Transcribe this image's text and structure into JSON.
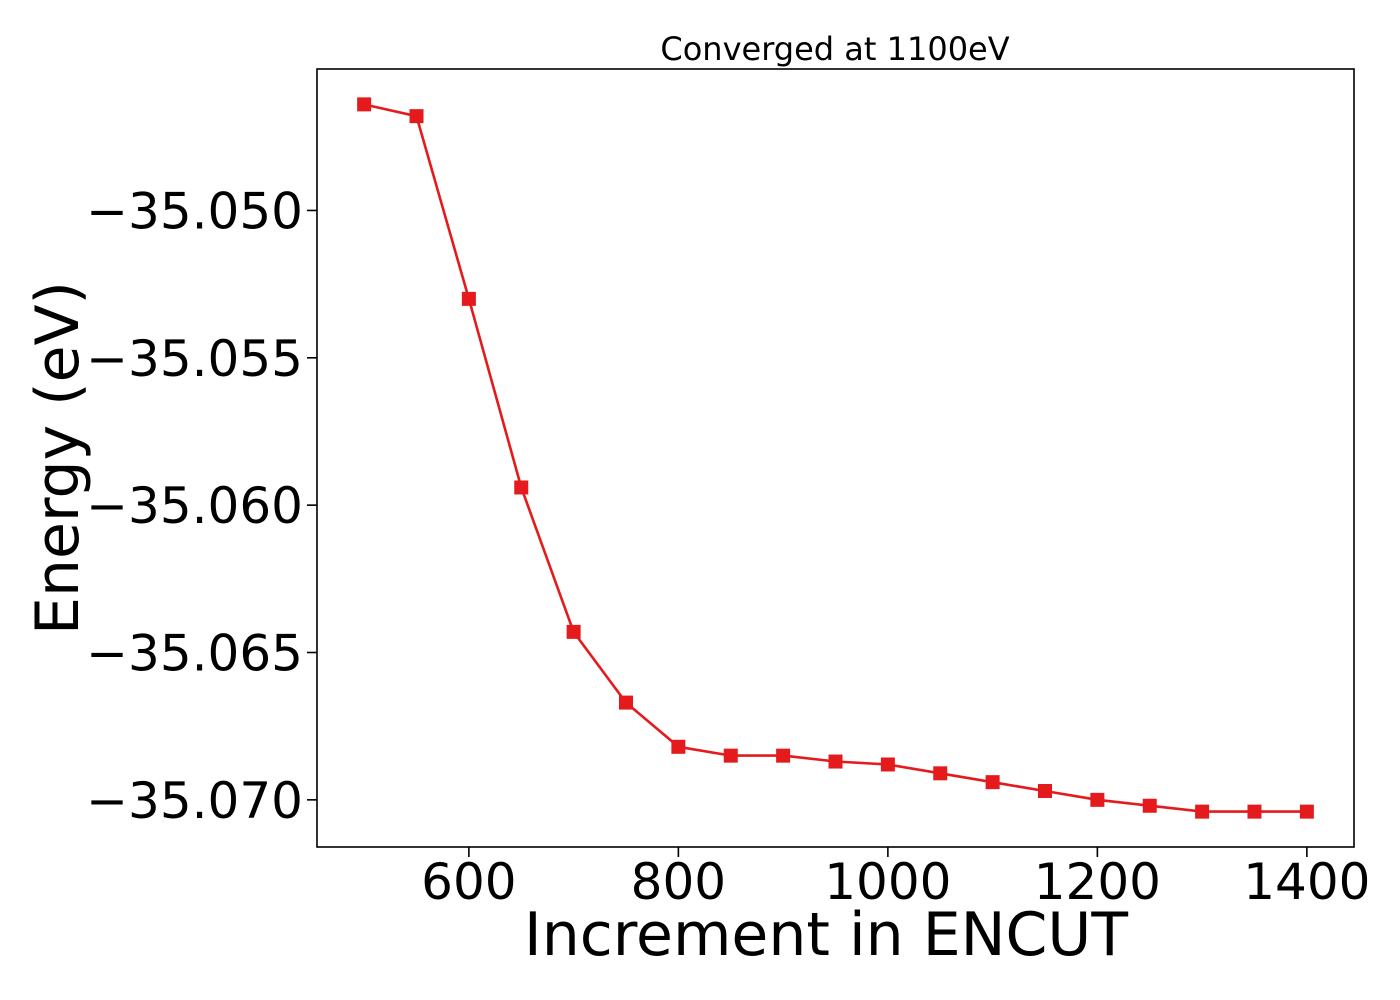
{
  "chart_data": {
    "type": "line",
    "title": "Converged at 1100eV",
    "xlabel": "Increment in ENCUT",
    "ylabel": "Energy (eV)",
    "x": [
      500,
      550,
      600,
      650,
      700,
      750,
      800,
      850,
      900,
      950,
      1000,
      1050,
      1100,
      1150,
      1200,
      1250,
      1300,
      1350,
      1400
    ],
    "series": [
      {
        "values": [
          -35.0464,
          -35.0468,
          -35.053,
          -35.0594,
          -35.0643,
          -35.0667,
          -35.0682,
          -35.0685,
          -35.0685,
          -35.0687,
          -35.0688,
          -35.0691,
          -35.0694,
          -35.0697,
          -35.07,
          -35.0702,
          -35.0704,
          -35.0704,
          -35.0704
        ],
        "color": "#e41a1c",
        "marker": "square"
      }
    ],
    "xticks": [
      600,
      800,
      1000,
      1200,
      1400
    ],
    "xtick_labels": [
      "600",
      "800",
      "1000",
      "1200",
      "1400"
    ],
    "yticks": [
      -35.05,
      -35.055,
      -35.06,
      -35.065,
      -35.07
    ],
    "ytick_labels": [
      "−35.050",
      "−35.055",
      "−35.060",
      "−35.065",
      "−35.070"
    ],
    "xlim": [
      455,
      1445
    ],
    "ylim": [
      -35.0716,
      -35.0452
    ],
    "grid": false,
    "legend": "none"
  }
}
